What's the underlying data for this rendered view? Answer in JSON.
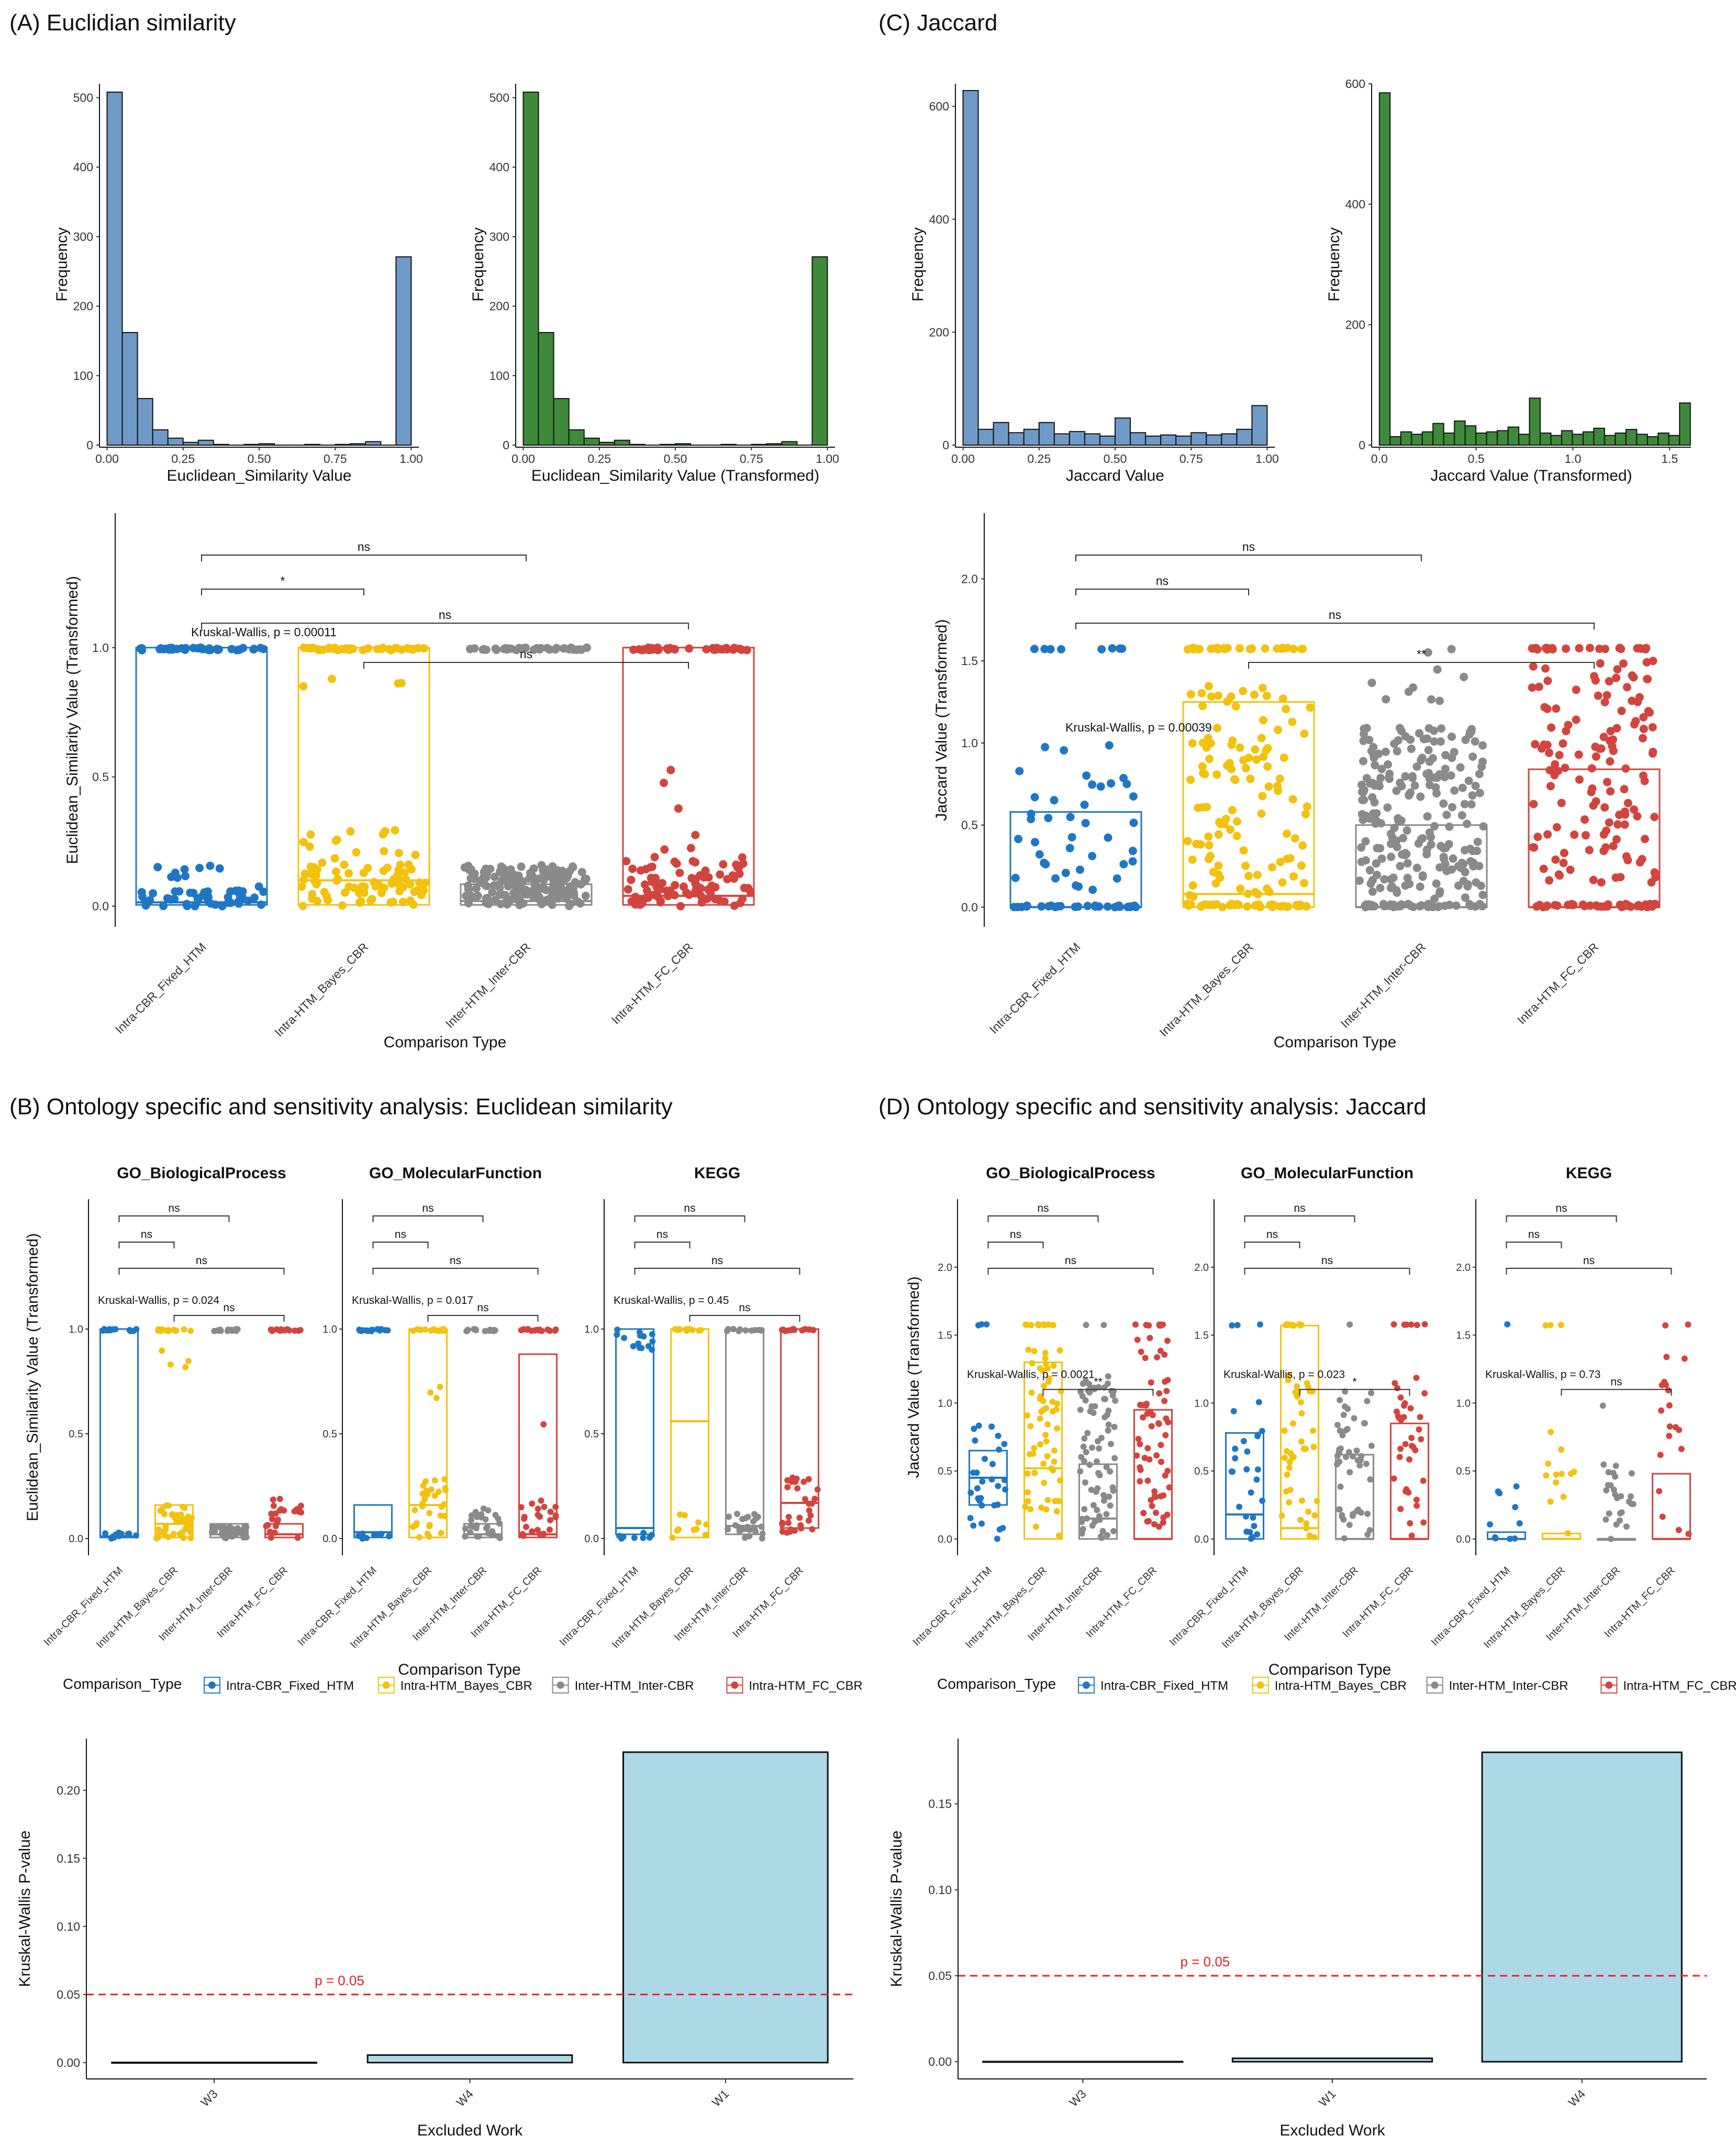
{
  "panels": {
    "A": "(A) Euclidian similarity",
    "B": "(B) Ontology specific and sensitivity analysis: Euclidean similarity",
    "C": "(C) Jaccard",
    "D": "(D) Ontology specific and sensitivity analysis: Jaccard"
  },
  "colors": {
    "Intra-CBR_Fixed_HTM": "#1f77c4",
    "Intra-HTM_Bayes_CBR": "#f2c20f",
    "Inter-HTM_Inter-CBR": "#8a8a8a",
    "Intra-HTM_FC_CBR": "#d2453f",
    "hist_blue": "#6f99c6",
    "hist_green": "#3f8a3a",
    "bar_fill": "#add8e6",
    "ref_line": "#e8201f"
  },
  "chart_data": [
    {
      "id": "A1",
      "type": "bar",
      "ylabel": "Frequency",
      "xlabel": "Euclidean_Similarity Value",
      "x_range": [
        -0.025,
        1.025
      ],
      "ylim": [
        0,
        520
      ],
      "x_ticks": [
        "0.00",
        "0.25",
        "0.50",
        "0.75",
        "1.00"
      ],
      "y_ticks": [
        "0",
        "100",
        "200",
        "300",
        "400",
        "500"
      ],
      "fill": "hist_blue",
      "bin_width": 0.05,
      "values": [
        508,
        162,
        67,
        22,
        10,
        4,
        7,
        1,
        0,
        1,
        2,
        0,
        0,
        1,
        0,
        1,
        2,
        5,
        0,
        271
      ]
    },
    {
      "id": "A2",
      "type": "bar",
      "ylabel": "Frequency",
      "xlabel": "Euclidean_Similarity Value (Transformed)",
      "x_range": [
        -0.025,
        1.025
      ],
      "ylim": [
        0,
        520
      ],
      "x_ticks": [
        "0.00",
        "0.25",
        "0.50",
        "0.75",
        "1.00"
      ],
      "y_ticks": [
        "0",
        "100",
        "200",
        "300",
        "400",
        "500"
      ],
      "fill": "hist_green",
      "bin_width": 0.05,
      "values": [
        508,
        162,
        67,
        22,
        10,
        4,
        7,
        1,
        0,
        1,
        2,
        0,
        0,
        1,
        0,
        1,
        2,
        5,
        0,
        271
      ]
    },
    {
      "id": "C1",
      "type": "bar",
      "ylabel": "Frequency",
      "xlabel": "Jaccard Value",
      "x_range": [
        -0.025,
        1.025
      ],
      "ylim": [
        0,
        640
      ],
      "x_ticks": [
        "0.00",
        "0.25",
        "0.50",
        "0.75",
        "1.00"
      ],
      "y_ticks": [
        "0",
        "200",
        "400",
        "600"
      ],
      "fill": "hist_blue",
      "bin_width": 0.05,
      "values": [
        628,
        28,
        40,
        22,
        28,
        40,
        20,
        24,
        20,
        16,
        48,
        22,
        16,
        18,
        16,
        22,
        18,
        20,
        28,
        70
      ]
    },
    {
      "id": "C2",
      "type": "bar",
      "ylabel": "Frequency",
      "xlabel": "Jaccard Value (Transformed)",
      "x_range": [
        -0.04,
        1.61
      ],
      "ylim": [
        0,
        600
      ],
      "x_ticks": [
        "0.0",
        "0.5",
        "1.0",
        "1.5"
      ],
      "y_ticks": [
        "0",
        "200",
        "400",
        "600"
      ],
      "fill": "hist_green",
      "bin_width": 0.0554,
      "values": [
        585,
        14,
        22,
        18,
        22,
        36,
        20,
        40,
        32,
        20,
        22,
        24,
        30,
        18,
        78,
        20,
        16,
        24,
        18,
        22,
        28,
        16,
        20,
        26,
        18,
        14,
        20,
        16,
        70
      ]
    },
    {
      "id": "Abox",
      "type": "box",
      "xlabel": "Comparison Type",
      "ylabel": "Euclidean_Similarity Value (Transformed)",
      "categories": [
        "Intra-CBR_Fixed_HTM",
        "Intra-HTM_Bayes_CBR",
        "Inter-HTM_Inter-CBR",
        "Intra-HTM_FC_CBR"
      ],
      "ylim": [
        -0.08,
        1.52
      ],
      "y_ticks": [
        "0.0",
        "0.5",
        "1.0"
      ],
      "boxes": [
        {
          "q1": 0.005,
          "median": 0.015,
          "q3": 1.0
        },
        {
          "q1": 0.005,
          "median": 0.1,
          "q3": 1.0
        },
        {
          "q1": 0.005,
          "median": 0.02,
          "q3": 0.085
        },
        {
          "q1": 0.005,
          "median": 0.04,
          "q3": 1.0
        }
      ],
      "kruskal": "Kruskal-Wallis, p = 0.00011",
      "comparisons": [
        {
          "from": 1,
          "to": 3,
          "label": "ns"
        },
        {
          "from": 1,
          "to": 2,
          "label": "*"
        },
        {
          "from": 1,
          "to": 4,
          "label": "ns"
        },
        {
          "from": 2,
          "to": 4,
          "label": "ns"
        }
      ]
    },
    {
      "id": "Cbox",
      "type": "box",
      "xlabel": "Comparison Type",
      "ylabel": "Jaccard Value (Transformed)",
      "categories": [
        "Intra-CBR_Fixed_HTM",
        "Intra-HTM_Bayes_CBR",
        "Inter-HTM_Inter-CBR",
        "Intra-HTM_FC_CBR"
      ],
      "ylim": [
        -0.12,
        2.4
      ],
      "y_ticks": [
        "0.0",
        "0.5",
        "1.0",
        "1.5",
        "2.0"
      ],
      "boxes": [
        {
          "q1": 0.0,
          "median": 0.0,
          "q3": 0.58
        },
        {
          "q1": 0.0,
          "median": 0.08,
          "q3": 1.25
        },
        {
          "q1": 0.0,
          "median": 0.0,
          "q3": 0.5
        },
        {
          "q1": 0.0,
          "median": 0.0,
          "q3": 0.84
        }
      ],
      "kruskal": "Kruskal-Wallis, p = 0.00039",
      "comparisons": [
        {
          "from": 1,
          "to": 3,
          "label": "ns"
        },
        {
          "from": 1,
          "to": 2,
          "label": "ns"
        },
        {
          "from": 1,
          "to": 4,
          "label": "ns"
        },
        {
          "from": 2,
          "to": 4,
          "label": "**"
        }
      ]
    },
    {
      "id": "Bfacets",
      "type": "box",
      "xlabel": "Comparison Type",
      "ylabel": "Euclidean_Similarity Value (Transformed)",
      "categories": [
        "Intra-CBR_Fixed_HTM",
        "Intra-HTM_Bayes_CBR",
        "Inter-HTM_Inter-CBR",
        "Intra-HTM_FC_CBR"
      ],
      "ylim": [
        -0.08,
        1.62
      ],
      "y_ticks": [
        "0.0",
        "0.5",
        "1.0"
      ],
      "facets": [
        {
          "title": "GO_BiologicalProcess",
          "kruskal": "Kruskal-Wallis, p = 0.024",
          "boxes": [
            {
              "q1": 0.005,
              "median": 0.01,
              "q3": 1.0
            },
            {
              "q1": 0.005,
              "median": 0.07,
              "q3": 0.16
            },
            {
              "q1": 0.005,
              "median": 0.02,
              "q3": 0.07
            },
            {
              "q1": 0.005,
              "median": 0.02,
              "q3": 0.07
            }
          ]
        },
        {
          "title": "GO_MolecularFunction",
          "kruskal": "Kruskal-Wallis, p = 0.017",
          "boxes": [
            {
              "q1": 0.005,
              "median": 0.03,
              "q3": 0.16
            },
            {
              "q1": 0.005,
              "median": 0.16,
              "q3": 1.0
            },
            {
              "q1": 0.005,
              "median": 0.02,
              "q3": 0.07
            },
            {
              "q1": 0.005,
              "median": 0.02,
              "q3": 0.88
            }
          ]
        },
        {
          "title": "KEGG",
          "kruskal": "Kruskal-Wallis, p = 0.45",
          "boxes": [
            {
              "q1": 0.02,
              "median": 0.05,
              "q3": 1.0
            },
            {
              "q1": 0.005,
              "median": 0.56,
              "q3": 1.0
            },
            {
              "q1": 0.02,
              "median": 0.06,
              "q3": 1.0
            },
            {
              "q1": 0.05,
              "median": 0.17,
              "q3": 1.0
            }
          ]
        }
      ],
      "comparisons": [
        {
          "from": 1,
          "to": 3,
          "label": "ns"
        },
        {
          "from": 1,
          "to": 2,
          "label": "ns"
        },
        {
          "from": 1,
          "to": 4,
          "label": "ns"
        },
        {
          "from": 2,
          "to": 4,
          "label": "ns"
        }
      ]
    },
    {
      "id": "Dfacets",
      "type": "box",
      "xlabel": "Comparison Type",
      "ylabel": "Jaccard Value (Transformed)",
      "categories": [
        "Intra-CBR_Fixed_HTM",
        "Intra-HTM_Bayes_CBR",
        "Inter-HTM_Inter-CBR",
        "Intra-HTM_FC_CBR"
      ],
      "ylim": [
        -0.12,
        2.5
      ],
      "y_ticks": [
        "0.0",
        "0.5",
        "1.0",
        "1.5",
        "2.0"
      ],
      "facets": [
        {
          "title": "GO_BiologicalProcess",
          "kruskal": "Kruskal-Wallis, p = 0.0021",
          "sig24": "**",
          "boxes": [
            {
              "q1": 0.25,
              "median": 0.45,
              "q3": 0.65
            },
            {
              "q1": 0.0,
              "median": 0.52,
              "q3": 1.3
            },
            {
              "q1": 0.0,
              "median": 0.15,
              "q3": 0.55
            },
            {
              "q1": 0.0,
              "median": 0.0,
              "q3": 0.95
            }
          ]
        },
        {
          "title": "GO_MolecularFunction",
          "kruskal": "Kruskal-Wallis, p = 0.023",
          "sig24": "*",
          "boxes": [
            {
              "q1": 0.0,
              "median": 0.18,
              "q3": 0.78
            },
            {
              "q1": 0.0,
              "median": 0.08,
              "q3": 1.57
            },
            {
              "q1": 0.0,
              "median": 0.0,
              "q3": 0.62
            },
            {
              "q1": 0.0,
              "median": 0.0,
              "q3": 0.85
            }
          ]
        },
        {
          "title": "KEGG",
          "kruskal": "Kruskal-Wallis, p = 0.73",
          "sig24": "ns",
          "boxes": [
            {
              "q1": 0.0,
              "median": 0.0,
              "q3": 0.05
            },
            {
              "q1": 0.0,
              "median": 0.0,
              "q3": 0.04
            },
            {
              "q1": 0.0,
              "median": 0.0,
              "q3": 0.0
            },
            {
              "q1": 0.0,
              "median": 0.0,
              "q3": 0.48
            }
          ]
        }
      ],
      "comparisons": [
        {
          "from": 1,
          "to": 3,
          "label": "ns"
        },
        {
          "from": 1,
          "to": 2,
          "label": "ns"
        },
        {
          "from": 1,
          "to": 4,
          "label": "ns"
        }
      ]
    },
    {
      "id": "Bbar",
      "type": "bar",
      "xlabel": "Excluded Work",
      "ylabel": "Kruskal-Wallis P-value",
      "categories": [
        "W3",
        "W4",
        "W1"
      ],
      "values": [
        0.0001,
        0.0055,
        0.228
      ],
      "ylim": [
        -0.012,
        0.238
      ],
      "y_ticks": [
        "0.00",
        "0.05",
        "0.10",
        "0.15",
        "0.20"
      ],
      "ref_line": 0.05,
      "ref_label": "p = 0.05"
    },
    {
      "id": "Dbar",
      "type": "bar",
      "xlabel": "Excluded Work",
      "ylabel": "Kruskal-Wallis P-value",
      "categories": [
        "W3",
        "W1",
        "W4"
      ],
      "values": [
        0.0001,
        0.002,
        0.18
      ],
      "ylim": [
        -0.01,
        0.188
      ],
      "y_ticks": [
        "0.00",
        "0.05",
        "0.10",
        "0.15"
      ],
      "ref_line": 0.05,
      "ref_label": "p = 0.05"
    }
  ],
  "legend": {
    "title": "Comparison_Type",
    "items": [
      "Intra-CBR_Fixed_HTM",
      "Intra-HTM_Bayes_CBR",
      "Inter-HTM_Inter-CBR",
      "Intra-HTM_FC_CBR"
    ]
  }
}
